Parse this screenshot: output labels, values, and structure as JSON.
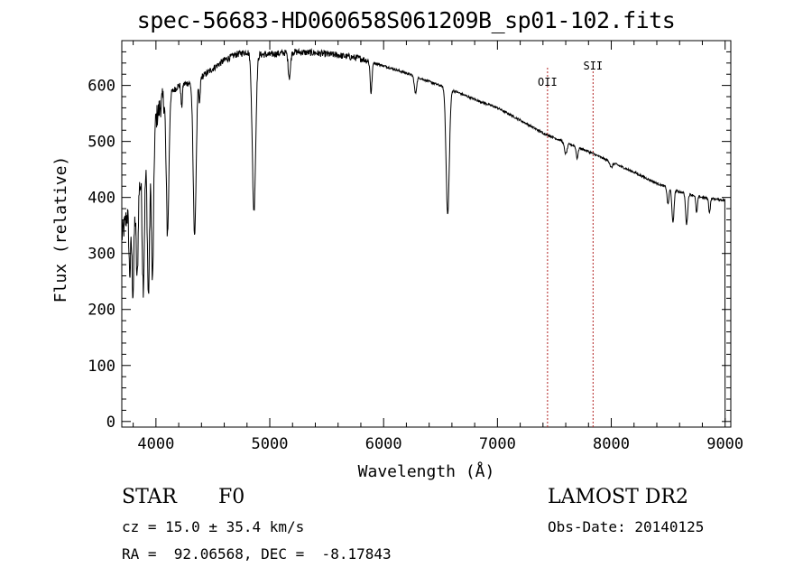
{
  "chart_data": {
    "type": "line",
    "title": "spec-56683-HD060658S061209B_sp01-102.fits",
    "xlabel": "Wavelength (Å)",
    "ylabel": "Flux (relative)",
    "xlim": [
      3700,
      9050
    ],
    "ylim": [
      -10,
      680
    ],
    "x_ticks": [
      4000,
      5000,
      6000,
      7000,
      8000,
      9000
    ],
    "y_ticks": [
      0,
      100,
      200,
      300,
      400,
      500,
      600
    ],
    "grid": false,
    "line_color": "#000000",
    "line_markers": [
      {
        "label": "OII",
        "x": 7440,
        "color": "#b22222"
      },
      {
        "label": "SII",
        "x": 7840,
        "color": "#b22222"
      }
    ],
    "continuum": [
      [
        3700,
        330
      ],
      [
        3760,
        380
      ],
      [
        3800,
        360
      ],
      [
        3850,
        420
      ],
      [
        3900,
        450
      ],
      [
        3950,
        470
      ],
      [
        4000,
        540
      ],
      [
        4050,
        570
      ],
      [
        4100,
        590
      ],
      [
        4150,
        590
      ],
      [
        4200,
        600
      ],
      [
        4300,
        605
      ],
      [
        4400,
        615
      ],
      [
        4500,
        630
      ],
      [
        4600,
        645
      ],
      [
        4700,
        655
      ],
      [
        4800,
        660
      ],
      [
        4900,
        655
      ],
      [
        5000,
        655
      ],
      [
        5200,
        660
      ],
      [
        5400,
        658
      ],
      [
        5600,
        654
      ],
      [
        5800,
        648
      ],
      [
        6000,
        635
      ],
      [
        6200,
        622
      ],
      [
        6400,
        607
      ],
      [
        6600,
        592
      ],
      [
        6800,
        575
      ],
      [
        7000,
        560
      ],
      [
        7200,
        538
      ],
      [
        7400,
        515
      ],
      [
        7600,
        498
      ],
      [
        7800,
        482
      ],
      [
        8000,
        463
      ],
      [
        8200,
        445
      ],
      [
        8400,
        425
      ],
      [
        8600,
        410
      ],
      [
        8800,
        400
      ],
      [
        9000,
        395
      ]
    ],
    "absorption_lines": [
      {
        "x": 3770,
        "depth": 110,
        "width": 8
      },
      {
        "x": 3798,
        "depth": 130,
        "width": 8
      },
      {
        "x": 3835,
        "depth": 150,
        "width": 8
      },
      {
        "x": 3889,
        "depth": 200,
        "width": 9
      },
      {
        "x": 3934,
        "depth": 240,
        "width": 9
      },
      {
        "x": 3970,
        "depth": 250,
        "width": 9
      },
      {
        "x": 4102,
        "depth": 250,
        "width": 12
      },
      {
        "x": 4226,
        "depth": 40,
        "width": 6
      },
      {
        "x": 4340,
        "depth": 275,
        "width": 13
      },
      {
        "x": 4383,
        "depth": 45,
        "width": 6
      },
      {
        "x": 4861,
        "depth": 280,
        "width": 15
      },
      {
        "x": 5172,
        "depth": 45,
        "width": 10
      },
      {
        "x": 5890,
        "depth": 55,
        "width": 8
      },
      {
        "x": 6280,
        "depth": 30,
        "width": 10
      },
      {
        "x": 6563,
        "depth": 225,
        "width": 14
      },
      {
        "x": 7600,
        "depth": 20,
        "width": 12
      },
      {
        "x": 7700,
        "depth": 20,
        "width": 8
      },
      {
        "x": 8000,
        "depth": 10,
        "width": 10
      },
      {
        "x": 8498,
        "depth": 30,
        "width": 8
      },
      {
        "x": 8542,
        "depth": 60,
        "width": 9
      },
      {
        "x": 8662,
        "depth": 55,
        "width": 9
      },
      {
        "x": 8750,
        "depth": 30,
        "width": 7
      },
      {
        "x": 8863,
        "depth": 25,
        "width": 7
      }
    ]
  },
  "info": {
    "object_class": "STAR",
    "subclass": "F0",
    "survey": "LAMOST DR2",
    "cz": "cz = 15.0 ± 35.4 km/s",
    "obs_date": "Obs-Date: 20140125",
    "coords": "RA =  92.06568, DEC =  -8.17843"
  }
}
